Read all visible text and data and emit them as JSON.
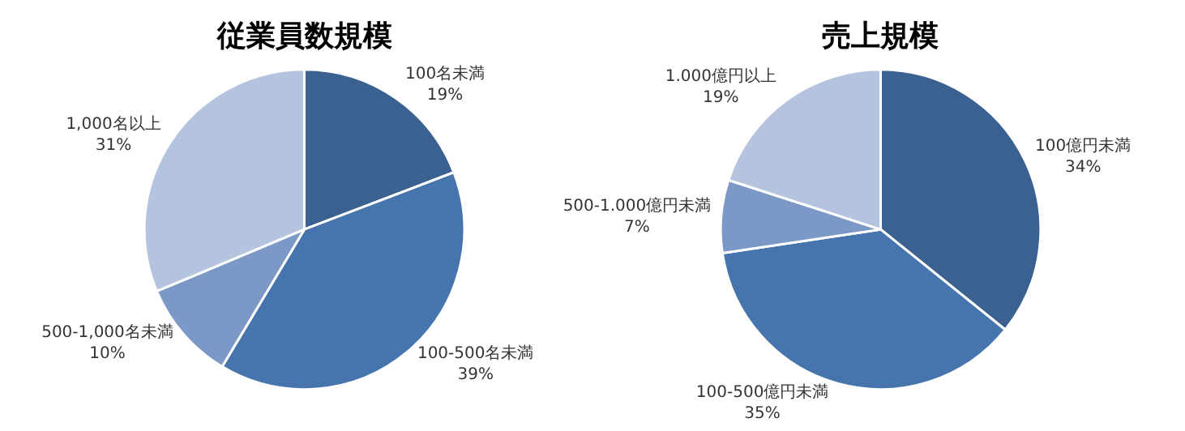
{
  "chart_data": [
    {
      "type": "pie",
      "title": "従業員数規模",
      "categories": [
        "100名未満",
        "100-500名未満",
        "500-1,000名未満",
        "1,000名以上"
      ],
      "values": [
        19,
        39,
        10,
        31
      ],
      "value_labels": [
        "19%",
        "39%",
        "10%",
        "31%"
      ],
      "colors": [
        "#3b6191",
        "#4674ad",
        "#7b98c6",
        "#b4c3de"
      ],
      "legend": false
    },
    {
      "type": "pie",
      "title": "売上規模",
      "categories": [
        "100億円未満",
        "100-500億円未満",
        "500-1.000億円未満",
        "1.000億円以上"
      ],
      "values": [
        34,
        35,
        7,
        19
      ],
      "value_labels": [
        "34%",
        "35%",
        "7%",
        "19%"
      ],
      "colors": [
        "#3b6191",
        "#4674ad",
        "#7b98c6",
        "#b4c3de"
      ],
      "legend": false
    }
  ]
}
